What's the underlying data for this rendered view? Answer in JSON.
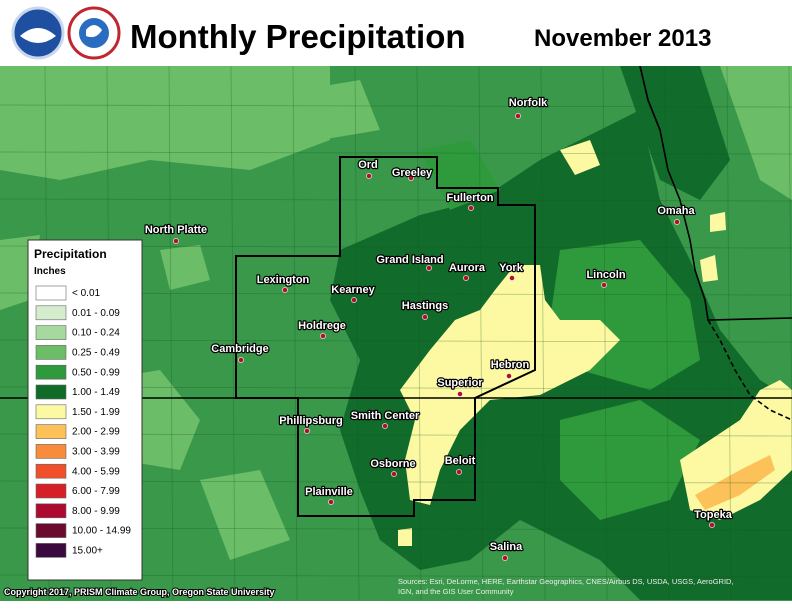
{
  "header": {
    "title": "Monthly Precipitation",
    "date": "November 2013"
  },
  "legend": {
    "title": "Precipitation",
    "units": "Inches",
    "items": [
      {
        "label": "< 0.01",
        "color": "#ffffff"
      },
      {
        "label": "0.01 - 0.09",
        "color": "#d4eecd"
      },
      {
        "label": "0.10 - 0.24",
        "color": "#a6d99d"
      },
      {
        "label": "0.25 - 0.49",
        "color": "#6cbd67"
      },
      {
        "label": "0.50 - 0.99",
        "color": "#2f9a3c"
      },
      {
        "label": "1.00 - 1.49",
        "color": "#0f6b27"
      },
      {
        "label": "1.50 - 1.99",
        "color": "#fdf9a2"
      },
      {
        "label": "2.00 - 2.99",
        "color": "#fdc15a"
      },
      {
        "label": "3.00 - 3.99",
        "color": "#f88c3c"
      },
      {
        "label": "4.00 - 5.99",
        "color": "#ef4f2a"
      },
      {
        "label": "6.00 - 7.99",
        "color": "#d62028"
      },
      {
        "label": "8.00 - 9.99",
        "color": "#ac0a30"
      },
      {
        "label": "10.00 - 14.99",
        "color": "#6b0a2c"
      },
      {
        "label": "15.00+",
        "color": "#3a0a3e"
      }
    ]
  },
  "cities": [
    "Norfolk",
    "Ord",
    "Greeley",
    "Fullerton",
    "Omaha",
    "North Platte",
    "Grand Island",
    "Aurora",
    "York",
    "Lincoln",
    "Lexington",
    "Kearney",
    "Hastings",
    "Holdrege",
    "Cambridge",
    "Hebron",
    "Superior",
    "Phillipsburg",
    "Smith Center",
    "Osborne",
    "Beloit",
    "Plainville",
    "Topeka",
    "Salina"
  ],
  "footer": {
    "copyright": "Copyright 2017, PRISM Climate Group, Oregon State University",
    "attribution": [
      "Sources: Esri, DeLorme, HERE, Earthstar Geographics, CNES/Airbus DS, USDA, USGS, AeroGRID,",
      "IGN, and the GIS User Community"
    ]
  }
}
